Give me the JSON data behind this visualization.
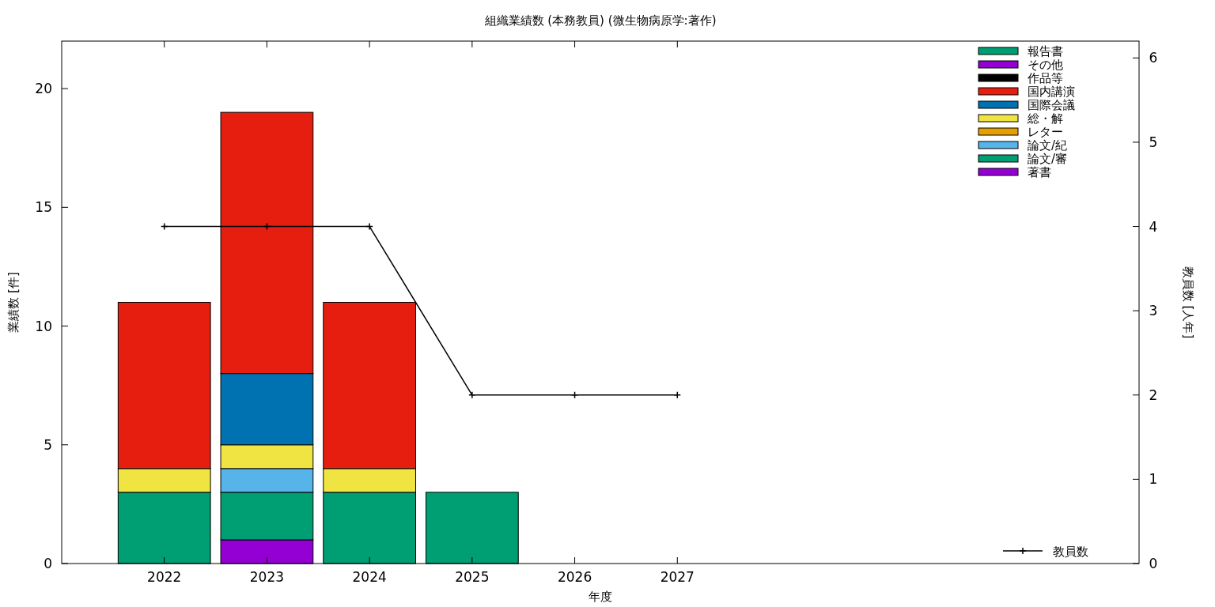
{
  "chart_data": {
    "type": "bar",
    "stacked": true,
    "title": "組織業績数 (本務教員) (微生物病原学:著作)",
    "xlabel": "年度",
    "ylabel": "業績数 [件]",
    "y2label": "教員数 [人年]",
    "x": [
      2022,
      2023,
      2024,
      2025,
      2026,
      2027
    ],
    "xlim": [
      2021,
      2031.5
    ],
    "xticks": [
      2022,
      2023,
      2024,
      2025,
      2026,
      2027
    ],
    "ylim": [
      0,
      22
    ],
    "yticks": [
      0,
      5,
      10,
      15,
      20
    ],
    "y2lim": [
      0,
      6.2
    ],
    "y2ticks": [
      0,
      1,
      2,
      3,
      4,
      5,
      6
    ],
    "legend": "top right",
    "grid": false,
    "series": [
      {
        "name": "著書",
        "color": "#9400d3",
        "values": [
          0,
          1,
          0,
          0,
          0,
          0
        ]
      },
      {
        "name": "論文/審",
        "color": "#009e73",
        "values": [
          3,
          2,
          3,
          3,
          0,
          0
        ]
      },
      {
        "name": "論文/紀",
        "color": "#56b4e9",
        "values": [
          0,
          1,
          0,
          0,
          0,
          0
        ]
      },
      {
        "name": "レター",
        "color": "#e69f00",
        "values": [
          0,
          0,
          0,
          0,
          0,
          0
        ]
      },
      {
        "name": "総・解",
        "color": "#f0e442",
        "values": [
          1,
          1,
          1,
          0,
          0,
          0
        ]
      },
      {
        "name": "国際会議",
        "color": "#0072b2",
        "values": [
          0,
          3,
          0,
          0,
          0,
          0
        ]
      },
      {
        "name": "国内講演",
        "color": "#e51e10",
        "values": [
          7,
          11,
          7,
          0,
          0,
          0
        ]
      },
      {
        "name": "作品等",
        "color": "#000000",
        "values": [
          0,
          0,
          0,
          0,
          0,
          0
        ]
      },
      {
        "name": "その他",
        "color": "#9400d3",
        "values": [
          0,
          0,
          0,
          0,
          0,
          0
        ]
      },
      {
        "name": "報告書",
        "color": "#009e73",
        "values": [
          0,
          0,
          0,
          0,
          0,
          0
        ]
      },
      {
        "name": "教員数",
        "type": "line",
        "axis": "y2",
        "color": "#000000",
        "marker": "cross",
        "line_style": "solid",
        "values": [
          4,
          4,
          4,
          2,
          2,
          2
        ]
      }
    ]
  }
}
